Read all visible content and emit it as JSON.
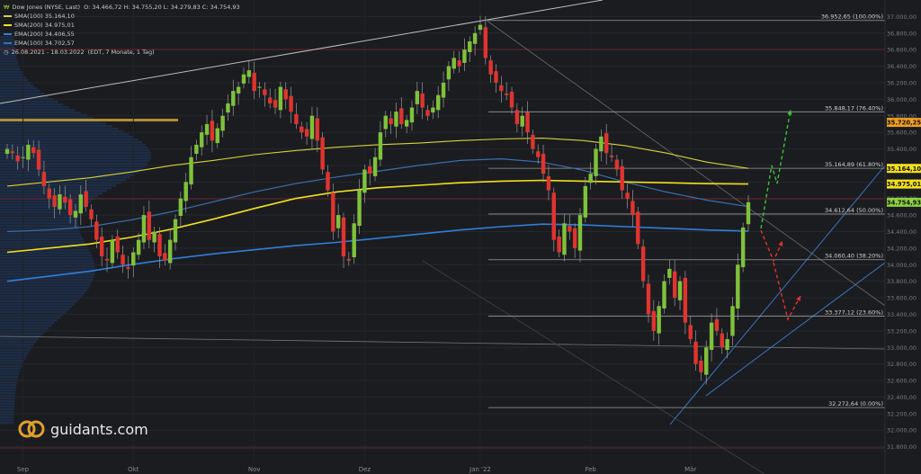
{
  "header": {
    "instrument": "Dow Jones (NYSE, Last)",
    "ohlc": "O: 34.466,72  H: 34.755,20  L: 34.279,83  C: 34.754,93",
    "period": "26.08.2021 - 18.03.2022",
    "interval": "(EDT, 7 Monate, 1 Tag)"
  },
  "legend": [
    {
      "name": "SMA(100)",
      "value": "35.164,10",
      "color": "#d6d33a"
    },
    {
      "name": "SMA(200)",
      "value": "34.975,01",
      "color": "#f2e01e"
    },
    {
      "name": "EMA(200)",
      "value": "34.406,55",
      "color": "#2f7fd9"
    },
    {
      "name": "EMA(100)",
      "value": "34.702,57",
      "color": "#3a6fb0"
    }
  ],
  "logo": {
    "text": "guidants.com"
  },
  "chart_data": {
    "type": "candlestick",
    "ylim": [
      31600,
      37200
    ],
    "y_ticks": [
      "37.000,00",
      "36.800,00",
      "36.600,00",
      "36.400,00",
      "36.200,00",
      "36.000,00",
      "35.800,00",
      "35.600,00",
      "35.400,00",
      "35.200,00",
      "35.000,00",
      "34.800,00",
      "34.600,00",
      "34.400,00",
      "34.200,00",
      "34.000,00",
      "33.800,00",
      "33.600,00",
      "33.400,00",
      "33.200,00",
      "33.000,00",
      "32.800,00",
      "32.600,00",
      "32.400,00",
      "32.200,00",
      "32.000,00",
      "31.800,00"
    ],
    "y_tick_values": [
      37000,
      36800,
      36600,
      36400,
      36200,
      36000,
      35800,
      35600,
      35400,
      35200,
      35000,
      34800,
      34600,
      34400,
      34200,
      34000,
      33800,
      33600,
      33400,
      33200,
      33000,
      32800,
      32600,
      32400,
      32200,
      32000,
      31800
    ],
    "x_labels": [
      "Sep",
      "Okt",
      "Nov",
      "Dez",
      "Jan '22",
      "Feb",
      "Mär"
    ],
    "x_label_day_index": [
      3,
      24,
      47,
      68,
      90,
      111,
      130
    ],
    "fib_levels": [
      {
        "label": "36.952,65 (100.00%)",
        "value": 36952.65
      },
      {
        "label": "35.848,17 (76.40%)",
        "value": 35848.17
      },
      {
        "label": "35.164,89 (61.80%)",
        "value": 35164.89
      },
      {
        "label": "34.612,64 (50.00%)",
        "value": 34612.64
      },
      {
        "label": "34.060,40 (38.20%)",
        "value": 34060.4
      },
      {
        "label": "33.377,12 (23.60%)",
        "value": 33377.12
      },
      {
        "label": "32.272,64 (0.00%)",
        "value": 32272.64
      }
    ],
    "price_badges": [
      {
        "text": "35.720,25",
        "value": 35720.25,
        "color": "#f0a020"
      },
      {
        "text": "35.164,10",
        "value": 35164.1,
        "color": "#f2e01e"
      },
      {
        "text": "34.975,01",
        "value": 34975.01,
        "color": "#f2e01e"
      },
      {
        "text": "34.754,93",
        "value": 34754.93,
        "color": "#8fd13f"
      }
    ],
    "closes": [
      35400,
      35350,
      35250,
      35300,
      35450,
      35350,
      35150,
      34950,
      34800,
      34700,
      34850,
      34750,
      34600,
      34650,
      34850,
      34700,
      34550,
      34300,
      34100,
      34050,
      34300,
      34150,
      34000,
      33950,
      34150,
      34300,
      34600,
      34300,
      34400,
      34100,
      34050,
      34300,
      34550,
      34800,
      35000,
      35300,
      35450,
      35600,
      35700,
      35500,
      35650,
      35800,
      35950,
      36100,
      36150,
      36300,
      36350,
      36100,
      36150,
      36050,
      35950,
      35900,
      36150,
      36000,
      35850,
      35700,
      35600,
      35550,
      35800,
      35500,
      35150,
      34900,
      34400,
      34600,
      34100,
      34050,
      34500,
      34900,
      35150,
      35100,
      35300,
      35600,
      35800,
      35700,
      35850,
      35700,
      35750,
      35900,
      36100,
      35900,
      35800,
      35900,
      36050,
      36200,
      36400,
      36500,
      36400,
      36600,
      36700,
      36800,
      36900,
      36500,
      36300,
      36200,
      36100,
      36050,
      35900,
      35700,
      35800,
      35600,
      35400,
      35300,
      35100,
      34900,
      34300,
      34150,
      34500,
      34400,
      34200,
      34600,
      34950,
      35100,
      35400,
      35550,
      35350,
      35300,
      35150,
      34900,
      34800,
      34600,
      34250,
      33800,
      33400,
      33200,
      33500,
      33800,
      33950,
      33600,
      33800,
      33300,
      33100,
      32800,
      32700,
      33000,
      33300,
      33200,
      33000,
      33100,
      33500,
      34000,
      34450,
      34754.93
    ],
    "sma100": [
      34950,
      35000,
      35050,
      35120,
      35200,
      35260,
      35330,
      35380,
      35420,
      35450,
      35470,
      35500,
      35520,
      35530,
      35500,
      35440,
      35350,
      35240,
      35164.1
    ],
    "sma200": [
      34150,
      34200,
      34250,
      34330,
      34430,
      34550,
      34680,
      34800,
      34880,
      34930,
      34960,
      34990,
      35010,
      35020,
      35010,
      35000,
      34990,
      34980,
      34975.01
    ],
    "ema100": [
      34400,
      34420,
      34460,
      34540,
      34640,
      34760,
      34880,
      34980,
      35060,
      35130,
      35200,
      35260,
      35280,
      35240,
      35140,
      35000,
      34880,
      34780,
      34702.57
    ],
    "ema200": [
      33800,
      33860,
      33920,
      34000,
      34070,
      34130,
      34180,
      34230,
      34270,
      34320,
      34370,
      34420,
      34460,
      34490,
      34480,
      34460,
      34440,
      34420,
      34406.55
    ]
  }
}
